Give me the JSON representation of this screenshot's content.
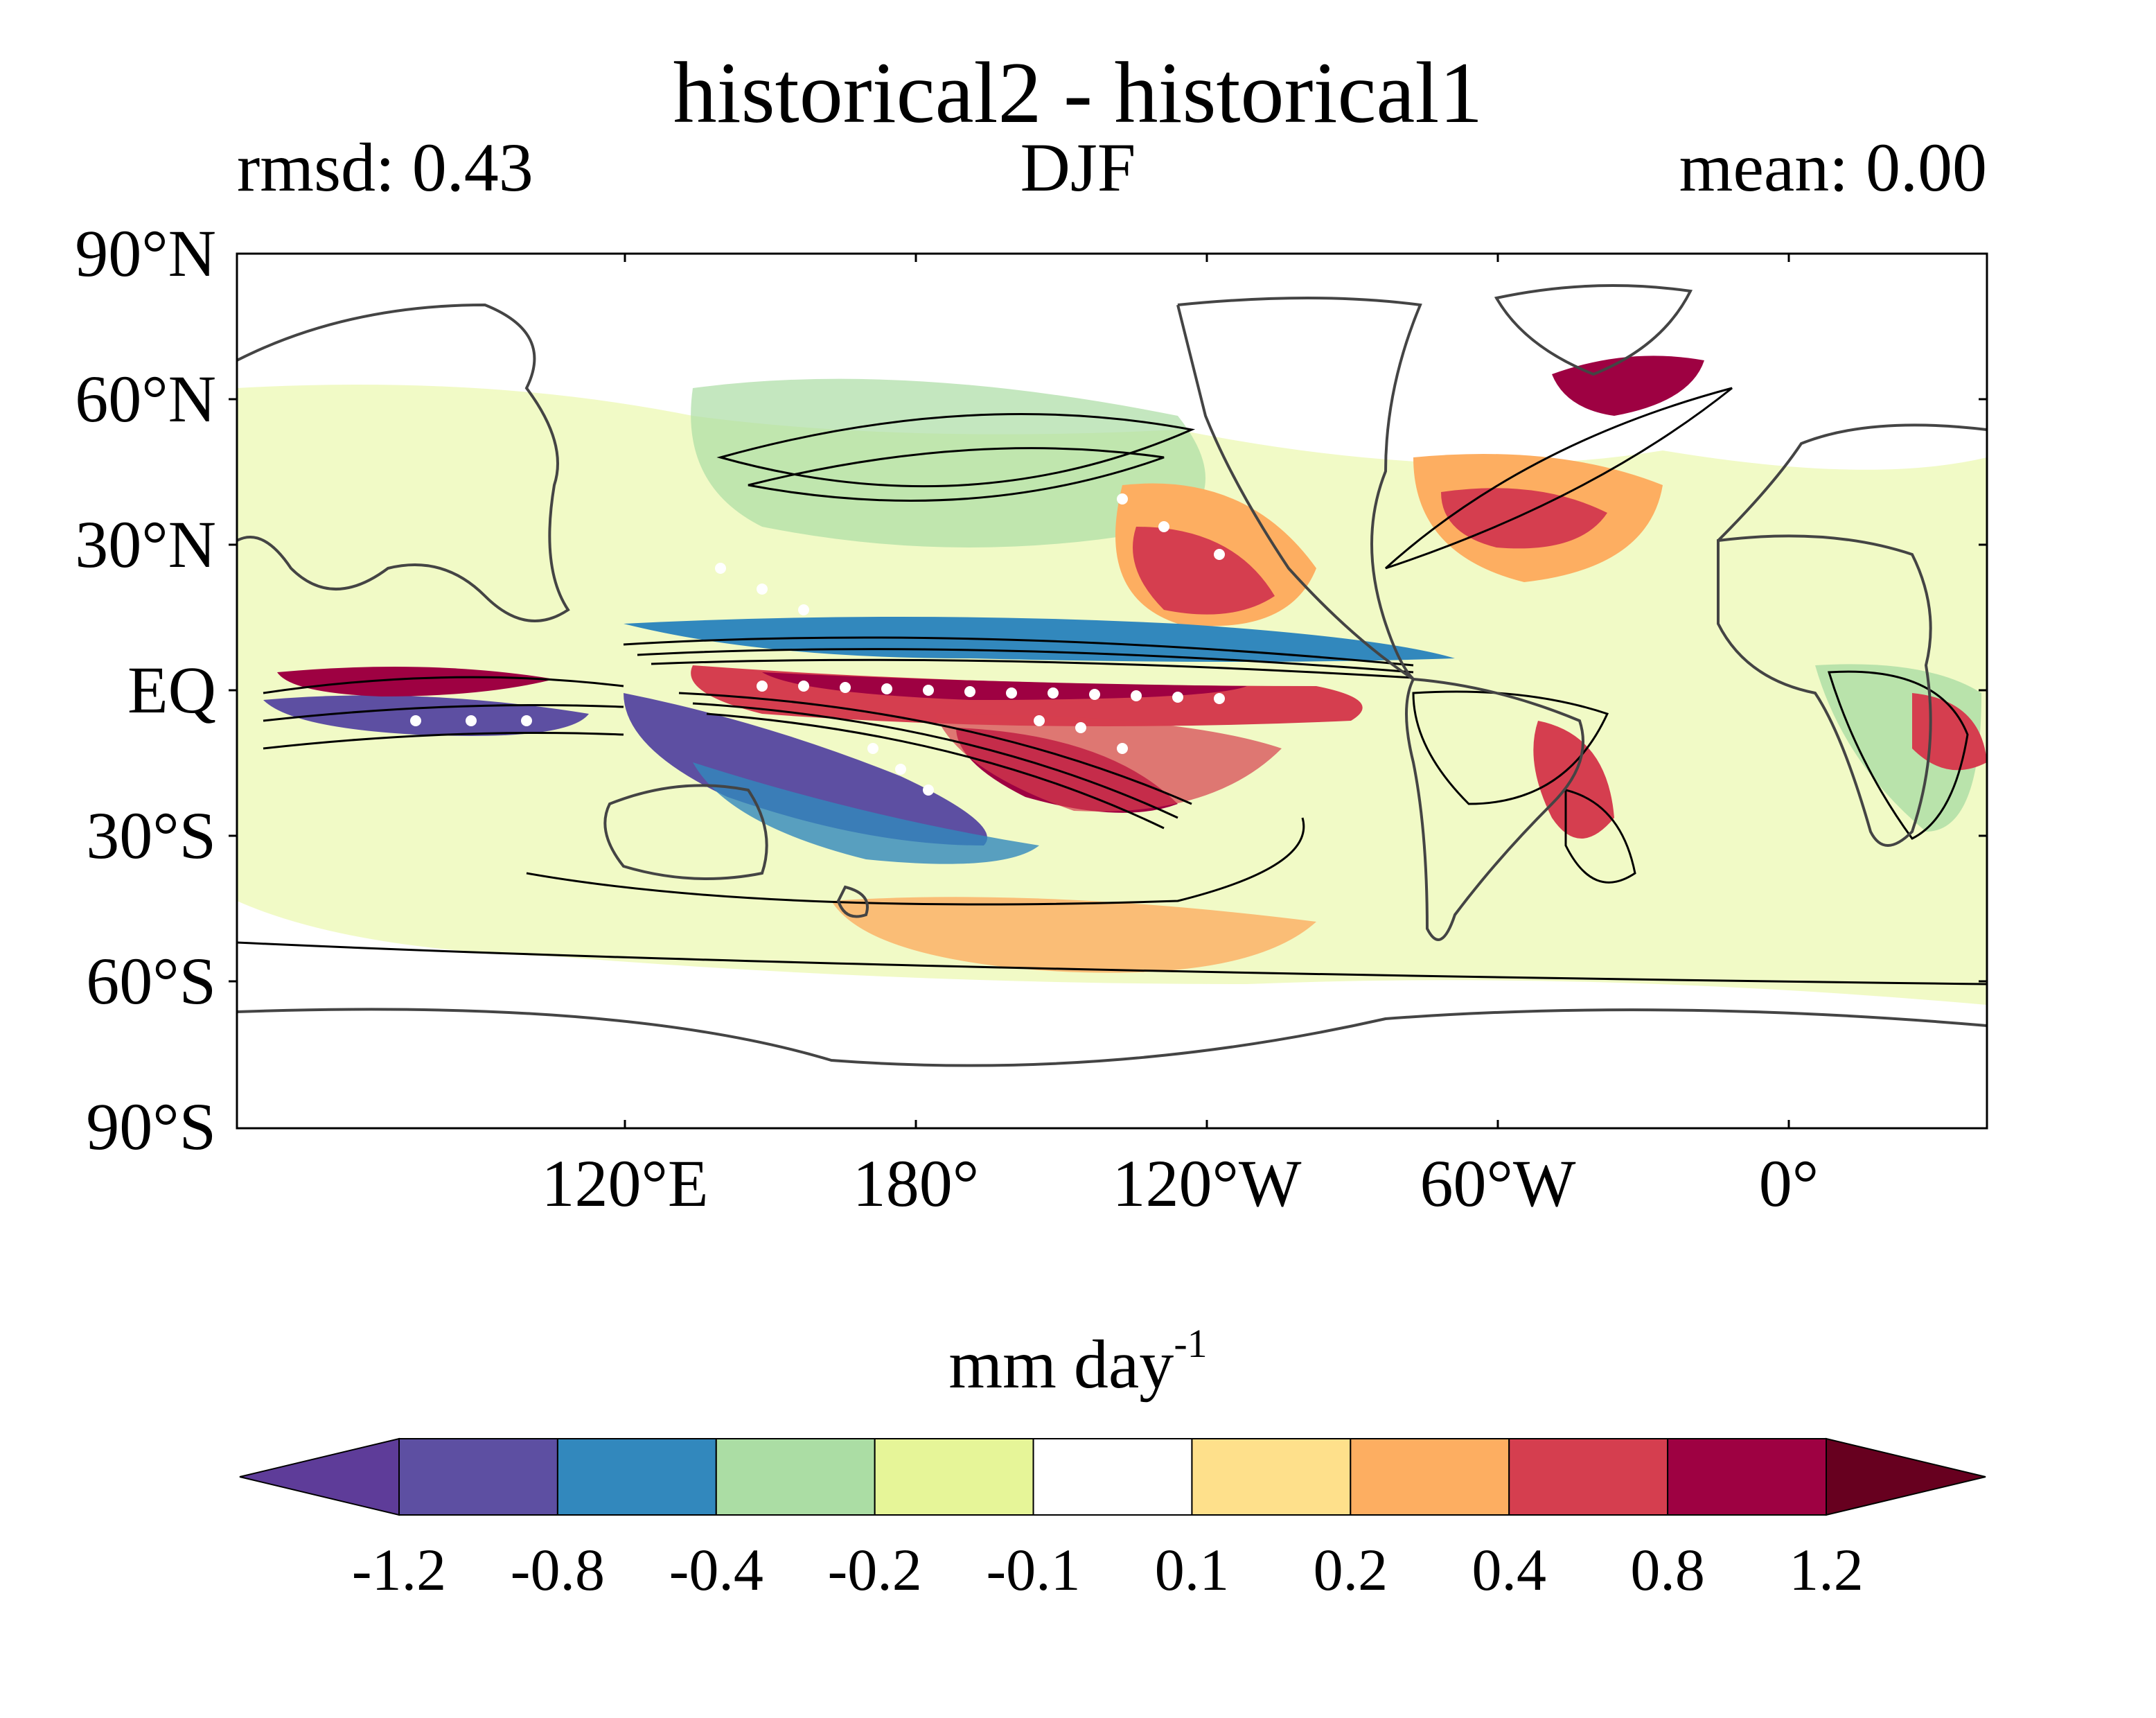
{
  "title": "historical2 - historical1",
  "left_label": "rmsd: 0.43",
  "center_label": "DJF",
  "right_label": "mean: 0.00",
  "y_axis": {
    "ticks": [
      "90°N",
      "60°N",
      "30°N",
      "EQ",
      "30°S",
      "60°S",
      "90°S"
    ],
    "values": [
      90,
      60,
      30,
      0,
      -30,
      -60,
      -90
    ]
  },
  "x_axis": {
    "ticks": [
      "120°E",
      "180°",
      "120°W",
      "60°W",
      "0°"
    ],
    "values": [
      120,
      180,
      240,
      300,
      360
    ],
    "range": [
      40,
      400
    ]
  },
  "colorbar": {
    "units_text": "mm day",
    "units_exp": "-1",
    "levels": [
      "-1.2",
      "-0.8",
      "-0.4",
      "-0.2",
      "-0.1",
      "0.1",
      "0.2",
      "0.4",
      "0.8",
      "1.2"
    ],
    "colors": [
      "#5e3c99",
      "#5d4fa2",
      "#3288bd",
      "#abdda4",
      "#e6f598",
      "#ffffff",
      "#fee08b",
      "#fdae61",
      "#d53e4f",
      "#9e0142",
      "#67001f"
    ]
  }
}
